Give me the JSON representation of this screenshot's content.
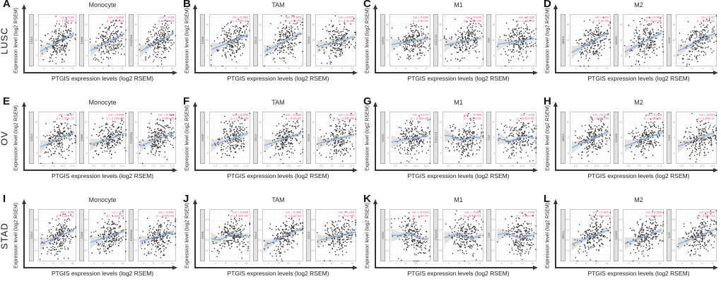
{
  "figure": {
    "x_axis_label": "PTGIS expression levels (log2 RSEM)",
    "y_axis_label": "Expression level (log2 RSEM)",
    "colors": {
      "annotation": "#e8537a",
      "smooth_line": "#8aabdd",
      "ci_band": "#c9c9c9",
      "dot": "#1a1a1a",
      "strip_bg": "#e2e2e2",
      "axis": "#333333"
    }
  },
  "columns": [
    "Monocyte",
    "TAM",
    "M1",
    "M2"
  ],
  "rows": [
    {
      "label": "LUSC",
      "x_ticks": [
        "3",
        "6",
        "9",
        "12"
      ],
      "y_ticks": [
        "5",
        "10",
        "15"
      ]
    },
    {
      "label": "OV",
      "x_ticks": [
        "5.0",
        "7.5",
        "10.0",
        "12.5"
      ],
      "y_ticks": [
        "6",
        "9",
        "12"
      ]
    },
    {
      "label": "STAD",
      "x_ticks": [
        "4",
        "8",
        "12",
        "16"
      ],
      "y_ticks": [
        "2.5",
        "5.0",
        "7.5",
        "10.0"
      ]
    }
  ],
  "chart_data": [
    {
      "panel": "A",
      "type": "scatter",
      "row": "LUSC",
      "cell_type": "Monocyte",
      "subplots": [
        {
          "gene": "CD14",
          "cor": 0.49,
          "p": "1.05e-28",
          "cor_label": "cor = 0.49",
          "p_label": "p = 1.05e-28"
        },
        {
          "gene": "CD86",
          "cor": 0.452,
          "p": "3.11e-24",
          "cor_label": "cor = 0.452",
          "p_label": "p = 3.11e-24"
        },
        {
          "gene": "FCGR1A",
          "cor": 0.49,
          "p": "9.8e-29",
          "cor_label": "cor = 0.49",
          "p_label": "p = 9.8e-29"
        }
      ]
    },
    {
      "panel": "B",
      "type": "scatter",
      "row": "LUSC",
      "cell_type": "TAM",
      "subplots": [
        {
          "gene": "CD68",
          "cor": 0.392,
          "p": "1.32e-18",
          "cor_label": "cor = 0.392",
          "p_label": "p = 1.32e-18"
        },
        {
          "gene": "CCL2",
          "cor": 0.503,
          "p": "2.2e-30",
          "cor_label": "cor = 0.503",
          "p_label": "p = 2.2e-30"
        },
        {
          "gene": "CCL5",
          "cor": 0.275,
          "p": "4.3e-09",
          "cor_label": "cor = 0.275",
          "p_label": "p = 4.3e-09"
        }
      ]
    },
    {
      "panel": "C",
      "type": "scatter",
      "row": "LUSC",
      "cell_type": "M1",
      "subplots": [
        {
          "gene": "NOS2",
          "cor": 0.168,
          "p": "2.9e-04",
          "cor_label": "cor = 0.168",
          "p_label": "p = 2.9e-04"
        },
        {
          "gene": "CXCL10",
          "cor": 0.196,
          "p": "1.45e-05",
          "cor_label": "cor = 0.196",
          "p_label": "p = 1.45e-05"
        },
        {
          "gene": "TNF",
          "cor": 0.152,
          "p": "1.29e-04",
          "cor_label": "cor = 0.152",
          "p_label": "p = 1.29e-04"
        }
      ]
    },
    {
      "panel": "D",
      "type": "scatter",
      "row": "LUSC",
      "cell_type": "M2",
      "subplots": [
        {
          "gene": "MRC1",
          "cor": 0.54,
          "p": "4.2e-36",
          "cor_label": "cor = 0.54",
          "p_label": "p = 4.2e-36"
        },
        {
          "gene": "CD163",
          "cor": 0.504,
          "p": "9.1e-31",
          "cor_label": "cor = 0.504",
          "p_label": "p = 9.1e-31"
        },
        {
          "gene": "IL10",
          "cor": 0.47,
          "p": "1.04e-22",
          "cor_label": "cor = 0.47",
          "p_label": "p = 1.04e-22"
        }
      ]
    },
    {
      "panel": "E",
      "type": "scatter",
      "row": "OV",
      "cell_type": "Monocyte",
      "subplots": [
        {
          "gene": "CD14",
          "cor": 0.397,
          "p": "2.07e-12",
          "cor_label": "cor = 0.397",
          "p_label": "p = 2.07e-12"
        },
        {
          "gene": "CD86",
          "cor": 0.289,
          "p": "2.70e-07",
          "cor_label": "cor = 0.289",
          "p_label": "p = 2.70e-07"
        },
        {
          "gene": "FCGR1A",
          "cor": 0.356,
          "p": "4.26e-10",
          "cor_label": "cor = 0.356",
          "p_label": "p = 4.26e-10"
        }
      ]
    },
    {
      "panel": "F",
      "type": "scatter",
      "row": "OV",
      "cell_type": "TAM",
      "subplots": [
        {
          "gene": "CD68",
          "cor": 0.326,
          "p": "1.04e-09",
          "cor_label": "cor = 0.326",
          "p_label": "p = 1.04e-09"
        },
        {
          "gene": "CCL2",
          "cor": 0.328,
          "p": "8.0e-10",
          "cor_label": "cor = 0.328",
          "p_label": "p = 8.0e-10"
        },
        {
          "gene": "CCL5",
          "cor": 0.242,
          "p": "2.19e-05",
          "cor_label": "cor = 0.242",
          "p_label": "p = 2.19e-05"
        }
      ]
    },
    {
      "panel": "G",
      "type": "scatter",
      "row": "OV",
      "cell_type": "M1",
      "subplots": [
        {
          "gene": "NOS2",
          "cor": 0.172,
          "p": "2.40e-03",
          "cor_label": "cor = 0.172",
          "p_label": "p = 2.40e-03"
        },
        {
          "gene": "CXCL10",
          "cor": -0.058,
          "p": "3.09e-01",
          "cor_label": "cor = -0.058",
          "p_label": "p = 3.09e-01"
        },
        {
          "gene": "TNF",
          "cor": 0.08,
          "p": "1.67e-01",
          "cor_label": "cor = 0.08",
          "p_label": "p = 1.67e-01"
        }
      ]
    },
    {
      "panel": "H",
      "type": "scatter",
      "row": "OV",
      "cell_type": "M2",
      "subplots": [
        {
          "gene": "MRC1",
          "cor": 0.421,
          "p": "5.09e-15",
          "cor_label": "cor = 0.421",
          "p_label": "p = 5.09e-15"
        },
        {
          "gene": "CD163",
          "cor": 0.358,
          "p": "1.48e-10",
          "cor_label": "cor = 0.358",
          "p_label": "p = 1.48e-10"
        },
        {
          "gene": "IL10",
          "cor": 0.374,
          "p": "1.29e-11",
          "cor_label": "cor = 0.374",
          "p_label": "p = 1.29e-11"
        }
      ]
    },
    {
      "panel": "I",
      "type": "scatter",
      "row": "STAD",
      "cell_type": "Monocyte",
      "subplots": [
        {
          "gene": "CD14",
          "cor": 0.38,
          "p": "1.21e-14",
          "cor_label": "cor = 0.38",
          "p_label": "p = 1.21e-14"
        },
        {
          "gene": "CD86",
          "cor": 0.3,
          "p": "1.26e-10",
          "cor_label": "cor = 0.3",
          "p_label": "p = 1.26e-10"
        },
        {
          "gene": "FCGR1A",
          "cor": 0.269,
          "p": "4.67e-08",
          "cor_label": "cor = 0.269",
          "p_label": "p = 4.67e-08"
        }
      ]
    },
    {
      "panel": "J",
      "type": "scatter",
      "row": "STAD",
      "cell_type": "TAM",
      "subplots": [
        {
          "gene": "CD68",
          "cor": 0.136,
          "p": "5.57e-03",
          "cor_label": "cor = 0.136",
          "p_label": "p = 5.57e-03"
        },
        {
          "gene": "CCL2",
          "cor": 0.466,
          "p": "2.2e-16",
          "cor_label": "cor = 0.466",
          "p_label": "p < 2.2e-16"
        },
        {
          "gene": "CCL5",
          "cor": 0.219,
          "p": "7.1e-06",
          "cor_label": "cor = 0.219",
          "p_label": "p = 7.1e-06"
        }
      ]
    },
    {
      "panel": "K",
      "type": "scatter",
      "row": "STAD",
      "cell_type": "M1",
      "subplots": [
        {
          "gene": "NOS2",
          "cor": -0.123,
          "p": "1.2e-02",
          "cor_label": "cor = -0.123",
          "p_label": "p = 1.2e-02"
        },
        {
          "gene": "CXCL10",
          "cor": -0.001,
          "p": "9.92e-01",
          "cor_label": "cor = -0.001",
          "p_label": "p = 9.92e-01"
        },
        {
          "gene": "TNF",
          "cor": -0.06,
          "p": "2.22e-01",
          "cor_label": "cor = -0.06",
          "p_label": "p = 2.22e-01"
        }
      ]
    },
    {
      "panel": "L",
      "type": "scatter",
      "row": "STAD",
      "cell_type": "M2",
      "subplots": [
        {
          "gene": "MRC1",
          "cor": 0.387,
          "p": "1.62e-14",
          "cor_label": "cor = 0.387",
          "p_label": "p = 1.62e-14"
        },
        {
          "gene": "CD163",
          "cor": 0.366,
          "p": "1.8e-13",
          "cor_label": "cor = 0.366",
          "p_label": "p = 1.8e-13"
        },
        {
          "gene": "IL10",
          "cor": 0.386,
          "p": "3.96e-13",
          "cor_label": "cor = 0.386",
          "p_label": "p = 3.96e-13"
        }
      ]
    }
  ]
}
